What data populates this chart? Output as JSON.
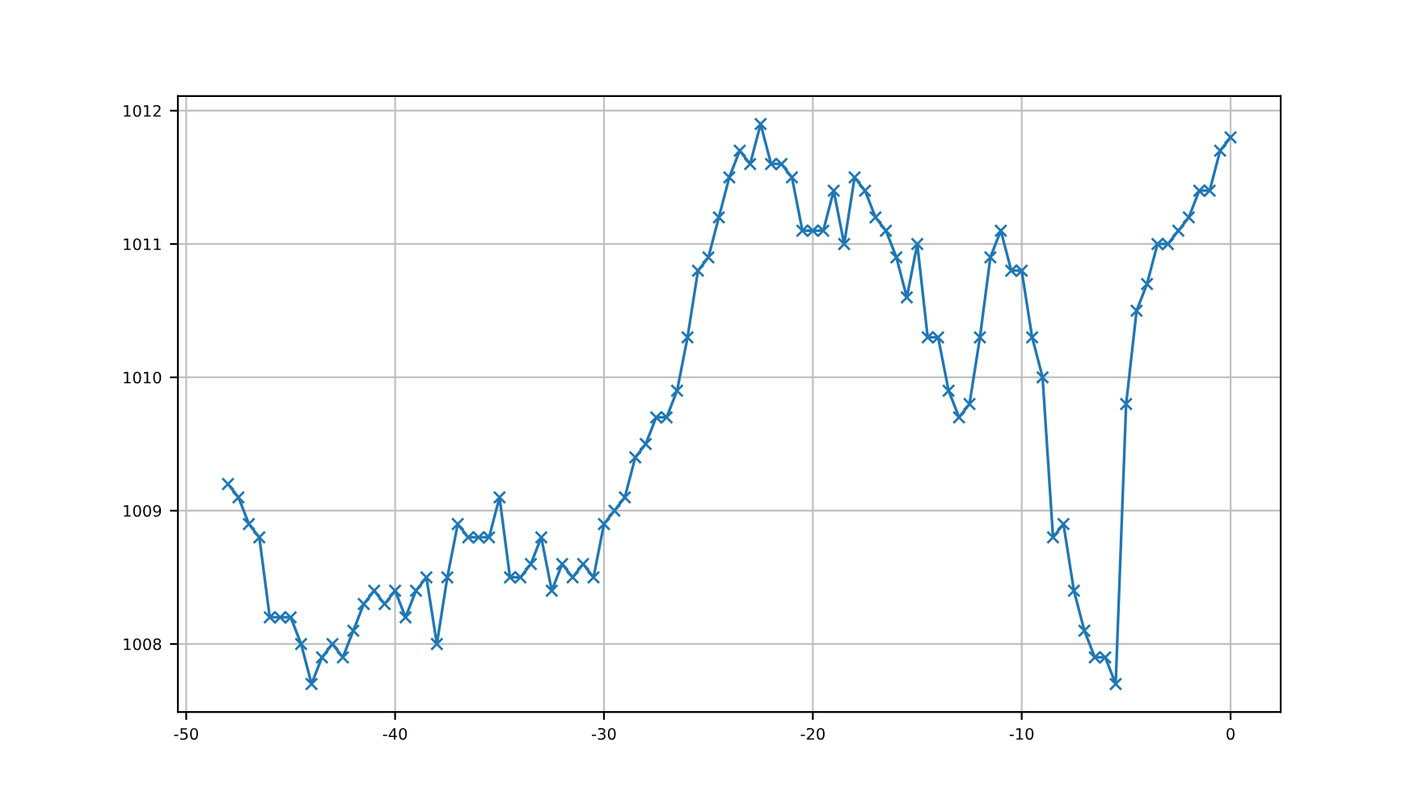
{
  "chart_data": {
    "type": "line",
    "x": [
      -48,
      -47.5,
      -47,
      -46.5,
      -46,
      -45.5,
      -45,
      -44.5,
      -44,
      -43.5,
      -43,
      -42.5,
      -42,
      -41.5,
      -41,
      -40.5,
      -40,
      -39.5,
      -39,
      -38.5,
      -38,
      -37.5,
      -37,
      -36.5,
      -36,
      -35.5,
      -35,
      -34.5,
      -34,
      -33.5,
      -33,
      -32.5,
      -32,
      -31.5,
      -31,
      -30.5,
      -30,
      -29.5,
      -29,
      -28.5,
      -28,
      -27.5,
      -27,
      -26.5,
      -26,
      -25.5,
      -25,
      -24.5,
      -24,
      -23.5,
      -23,
      -22.5,
      -22,
      -21.5,
      -21,
      -20.5,
      -20,
      -19.5,
      -19,
      -18.5,
      -18,
      -17.5,
      -17,
      -16.5,
      -16,
      -15.5,
      -15,
      -14.5,
      -14,
      -13.5,
      -13,
      -12.5,
      -12,
      -11.5,
      -11,
      -10.5,
      -10,
      -9.5,
      -9,
      -8.5,
      -8,
      -7.5,
      -7,
      -6.5,
      -6,
      -5.5,
      -5,
      -4.5,
      -4,
      -3.5,
      -3,
      -2.5,
      -2,
      -1.5,
      -1,
      -0.5,
      0
    ],
    "series": [
      {
        "color": "#1f77b4",
        "values": [
          1009.2,
          1009.1,
          1008.9,
          1008.8,
          1008.2,
          1008.2,
          1008.2,
          1008.0,
          1007.7,
          1007.9,
          1008.0,
          1007.9,
          1008.1,
          1008.3,
          1008.4,
          1008.3,
          1008.4,
          1008.2,
          1008.4,
          1008.5,
          1008.0,
          1008.5,
          1008.9,
          1008.8,
          1008.8,
          1008.8,
          1009.1,
          1008.5,
          1008.5,
          1008.6,
          1008.8,
          1008.4,
          1008.6,
          1008.5,
          1008.6,
          1008.5,
          1008.9,
          1009.0,
          1009.1,
          1009.4,
          1009.5,
          1009.7,
          1009.7,
          1009.9,
          1010.3,
          1010.8,
          1010.9,
          1011.2,
          1011.5,
          1011.7,
          1011.6,
          1011.9,
          1011.6,
          1011.6,
          1011.5,
          1011.1,
          1011.1,
          1011.1,
          1011.4,
          1011.0,
          1011.5,
          1011.4,
          1011.2,
          1011.1,
          1010.9,
          1010.6,
          1011.0,
          1010.3,
          1010.3,
          1009.9,
          1009.7,
          1009.8,
          1010.3,
          1010.9,
          1011.1,
          1010.8,
          1010.8,
          1010.3,
          1010.0,
          1008.8,
          1008.9,
          1008.4,
          1008.1,
          1007.9,
          1007.9,
          1007.7,
          1009.8,
          1010.5,
          1010.7,
          1011.0,
          1011.0,
          1011.1,
          1011.2,
          1011.4,
          1011.4,
          1011.7,
          1011.8
        ]
      }
    ],
    "xlim": [
      -50.4,
      2.4
    ],
    "ylim": [
      1007.49,
      1012.11
    ],
    "xticks": [
      -50,
      -40,
      -30,
      -20,
      -10,
      0
    ],
    "yticks": [
      1008,
      1009,
      1010,
      1011,
      1012
    ],
    "grid": true,
    "marker": "cross",
    "line_style": "solid"
  }
}
